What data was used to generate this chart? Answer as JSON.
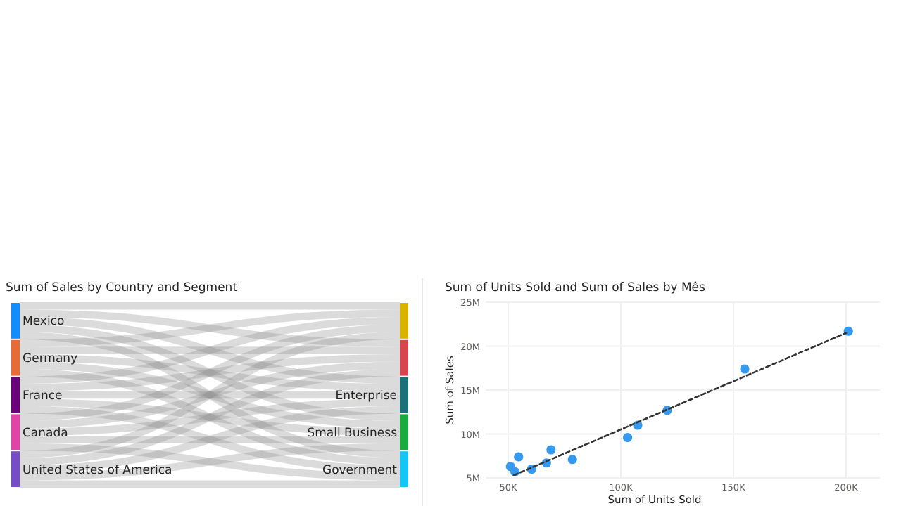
{
  "chart_data": [
    {
      "type": "other",
      "title": "Sum of Sales by Country and Segment",
      "categories": [
        "Mexico",
        "Germany",
        "France",
        "Canada",
        "United States of America"
      ],
      "colors": [
        "#118dff",
        "#e66c37",
        "#6b007b",
        "#e044a7",
        "#744ec2"
      ],
      "y_categories": [
        null,
        null,
        "Enterprise",
        "Small Business",
        "Government"
      ]
    },
    {
      "type": "scatter",
      "title": "Sum of Units Sold and Sum of Sales by Mês",
      "xlabel": "Sum of Units Sold",
      "ylabel": "Sum of Sales",
      "xlim": [
        40000,
        215000
      ],
      "ylim": [
        5000000,
        25000000
      ],
      "xticks": [
        {
          "value": 50000,
          "label": "50K"
        },
        {
          "value": 100000,
          "label": "100K"
        },
        {
          "value": 150000,
          "label": "150K"
        },
        {
          "value": 200000,
          "label": "200K"
        }
      ],
      "yticks": [
        {
          "value": 5000000,
          "label": "5M"
        },
        {
          "value": 10000000,
          "label": "10M"
        },
        {
          "value": 15000000,
          "label": "15M"
        },
        {
          "value": 20000000,
          "label": "20M"
        },
        {
          "value": 25000000,
          "label": "25M"
        }
      ],
      "grid": true,
      "series": [
        {
          "color": "#3599f0",
          "marker": "circle",
          "x": [
            51000,
            53000,
            54600,
            60400,
            67000,
            69000,
            78500,
            103000,
            107500,
            120600,
            155000,
            201000
          ],
          "values": [
            6300000,
            5700000,
            7400000,
            6000000,
            6700000,
            8200000,
            7100000,
            9600000,
            11000000,
            12700000,
            17400000,
            21700000
          ]
        },
        {
          "type": "line",
          "color": "#333333",
          "line_style": "dashed",
          "marker": "none",
          "x": [
            52500,
            200000
          ],
          "values": [
            5300000,
            21500000
          ]
        }
      ]
    }
  ]
}
